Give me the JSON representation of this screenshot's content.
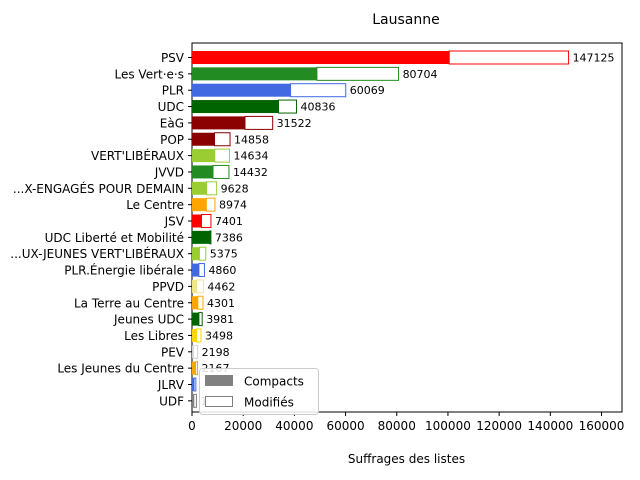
{
  "chart_data": {
    "type": "bar",
    "orientation": "horizontal",
    "stacked": true,
    "title": "Lausanne",
    "xlabel": "Suffrages des listes",
    "ylabel": "",
    "xlim": [
      0,
      168000
    ],
    "xticks": [
      0,
      20000,
      40000,
      60000,
      80000,
      100000,
      120000,
      140000,
      160000
    ],
    "grid": false,
    "legend_position": "lower-left",
    "legend": [
      {
        "label": "Compacts",
        "style": "filled",
        "color": "#808080"
      },
      {
        "label": "Modifiés",
        "style": "outline",
        "color": "#808080"
      }
    ],
    "categories": [
      "PSV",
      "Les Vert·e·s",
      "PLR",
      "UDC",
      "EàG",
      "POP",
      "VERT'LIBÉRAUX",
      "JVVD",
      "...X-ENGAGÉS POUR DEMAIN",
      "Le Centre",
      "JSV",
      "UDC Liberté et Mobilité",
      "...UX-JEUNES VERT'LIBÉRAUX",
      "PLR.Énergie libérale",
      "PPVD",
      "La Terre au Centre",
      "Jeunes UDC",
      "Les Libres",
      "PEV",
      "Les Jeunes du Centre",
      "JLRV",
      "UDF"
    ],
    "totals": [
      147125,
      80704,
      60069,
      40836,
      31522,
      14858,
      14634,
      14432,
      9628,
      8974,
      7401,
      7386,
      5375,
      4860,
      4462,
      4301,
      3981,
      3498,
      2198,
      2167,
      1500,
      1732
    ],
    "total_labels": [
      "147125",
      "80704",
      "60069",
      "40836",
      "31522",
      "14858",
      "14634",
      "14432",
      "9628",
      "8974",
      "7401",
      "7386",
      "5375",
      "4860",
      "4462",
      "4301",
      "3981",
      "3498",
      "2198",
      "2167",
      "",
      "1732"
    ],
    "series": [
      {
        "name": "Compacts",
        "values": [
          100500,
          48800,
          38500,
          33800,
          20700,
          8800,
          8900,
          8200,
          5700,
          5600,
          3700,
          7000,
          2900,
          2700,
          1800,
          2300,
          2700,
          1800,
          500,
          1400,
          800,
          700
        ]
      },
      {
        "name": "Modifiés",
        "values": [
          46625,
          31904,
          21569,
          7036,
          10822,
          6058,
          5734,
          6232,
          3928,
          3374,
          3701,
          386,
          2475,
          2160,
          2662,
          2001,
          1281,
          1698,
          1698,
          767,
          700,
          1032
        ]
      }
    ],
    "colors": [
      "#ff0000",
      "#228b22",
      "#4169e1",
      "#006400",
      "#8b0000",
      "#8b0000",
      "#9acd32",
      "#228b22",
      "#9acd32",
      "#ffa500",
      "#ff0000",
      "#006400",
      "#9acd32",
      "#4169e1",
      "#f0e68c",
      "#ffa500",
      "#006400",
      "#ffd700",
      "#d3d3d3",
      "#ffa500",
      "#4169e1",
      "#808080"
    ]
  }
}
